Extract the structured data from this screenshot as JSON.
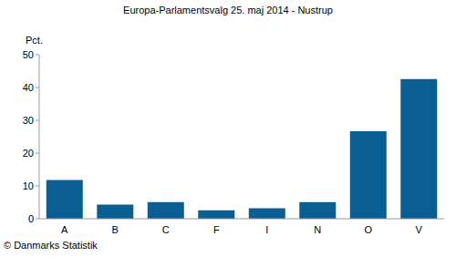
{
  "chart_data": {
    "type": "bar",
    "title": "Europa-Parlamentsvalg 25. maj 2014 - Nustrup",
    "y_label": "Pct.",
    "source": "© Danmarks Statistik",
    "categories": [
      "A",
      "B",
      "C",
      "F",
      "I",
      "N",
      "O",
      "V"
    ],
    "values": [
      11.8,
      4.3,
      5.1,
      2.6,
      3.2,
      5.1,
      26.7,
      42.6
    ],
    "color": "#0b5e91",
    "ylim": [
      0,
      50
    ],
    "yticks": [
      0,
      10,
      20,
      30,
      40,
      50
    ],
    "grid": false
  }
}
